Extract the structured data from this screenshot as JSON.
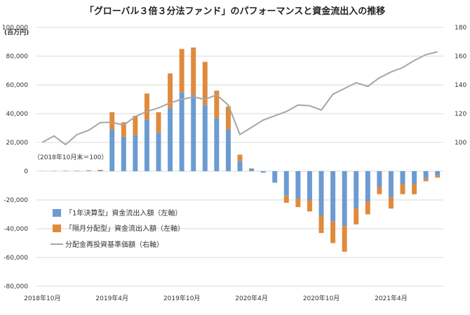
{
  "chart_data": {
    "type": "bar",
    "title": "「グローバル３倍３分法ファンド」のパフォーマンスと資金流出入の推移",
    "left_unit": "(百万円)",
    "note": "（2018年10月末＝100）",
    "ylim_left": [
      -80000,
      100000
    ],
    "ylim_right": [
      0,
      180
    ],
    "left_ticks": [
      "100,000",
      "80,000",
      "60,000",
      "40,000",
      "20,000",
      "0",
      "-20,000",
      "-40,000",
      "-60,000",
      "-80,000"
    ],
    "right_ticks": [
      "180",
      "160",
      "140",
      "120",
      "100"
    ],
    "x_tick_labels": [
      {
        "index": 0,
        "label": "2018年10月"
      },
      {
        "index": 6,
        "label": "2019年4月"
      },
      {
        "index": 12,
        "label": "2019年10月"
      },
      {
        "index": 18,
        "label": "2020年4月"
      },
      {
        "index": 24,
        "label": "2020年10月"
      },
      {
        "index": 30,
        "label": "2021年4月"
      }
    ],
    "grid": true,
    "legend_position": "bottom-left",
    "colors": {
      "annual": "#6b9bd1",
      "monthly": "#e08a3c",
      "nav": "#a6a6a6"
    },
    "series": [
      {
        "name": "「1年決算型」資金流出入額（左軸）",
        "type": "bar",
        "values": [
          100,
          200,
          300,
          300,
          400,
          600,
          29000,
          24000,
          25000,
          36000,
          27000,
          44000,
          55000,
          53000,
          46000,
          37000,
          29000,
          7000,
          1500,
          -1000,
          -8000,
          -17000,
          -19000,
          -20000,
          -31000,
          -35000,
          -38000,
          -26000,
          -21000,
          -11000,
          -18000,
          -9000,
          -9000,
          -5000,
          -3000
        ]
      },
      {
        "name": "「隔月分配型」資金流出入額（左軸）",
        "type": "bar",
        "values": [
          0,
          0,
          0,
          0,
          200,
          400,
          12000,
          10000,
          13500,
          18000,
          14000,
          24000,
          30000,
          33000,
          30000,
          19000,
          16000,
          4500,
          500,
          0,
          0,
          -5000,
          -6000,
          -8000,
          -12000,
          -15000,
          -18000,
          -11000,
          -9000,
          -5000,
          -8000,
          -7000,
          -7000,
          -2000,
          -1500
        ]
      },
      {
        "name": "分配金再投資基準価額（右軸）",
        "type": "line",
        "values": [
          100,
          104.5,
          98.5,
          105.5,
          108.5,
          113.8,
          114,
          112,
          118,
          121.5,
          124,
          127.5,
          130,
          131.5,
          130,
          133,
          126,
          105.5,
          110.5,
          115.5,
          118.5,
          121.5,
          126,
          125.5,
          122.5,
          133.5,
          137.5,
          141.5,
          139,
          145,
          149,
          152,
          157,
          161,
          163
        ]
      }
    ]
  }
}
